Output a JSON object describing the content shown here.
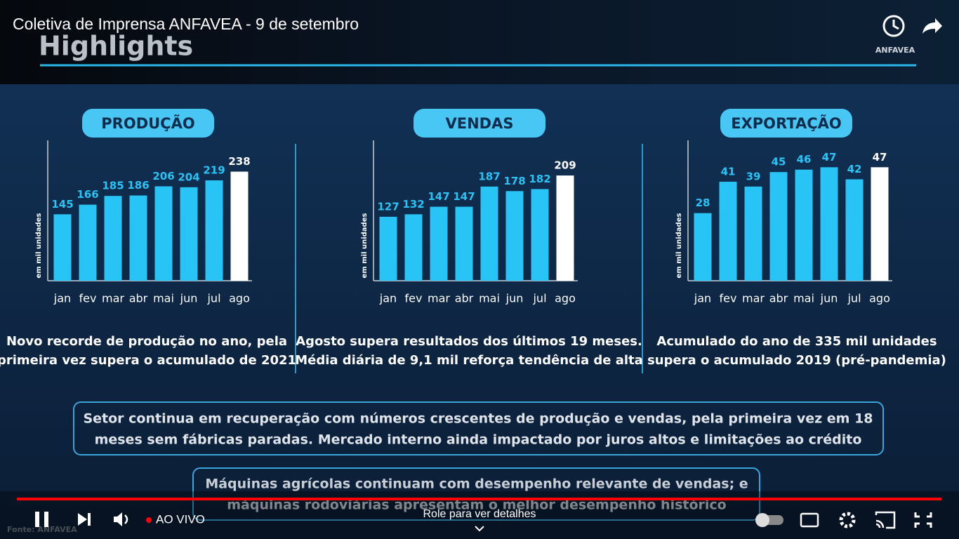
{
  "video": {
    "title": "Coletiva de Imprensa ANFAVEA - 9 de setembro",
    "logo": "ANFAVEA"
  },
  "slide": {
    "heading": "Highlights",
    "source": "Fonte: ANFAVEA"
  },
  "chart_data": [
    {
      "type": "bar",
      "title": "PRODUÇÃO",
      "y_label": "em mil unidades",
      "categories": [
        "jan",
        "fev",
        "mar",
        "abr",
        "mai",
        "jun",
        "jul",
        "ago"
      ],
      "values": [
        145,
        166,
        185,
        186,
        206,
        204,
        219,
        238
      ],
      "colors": [
        "#29c4f6",
        "#29c4f6",
        "#29c4f6",
        "#29c4f6",
        "#29c4f6",
        "#29c4f6",
        "#29c4f6",
        "#ffffff"
      ],
      "ylim": [
        0,
        245
      ],
      "caption": [
        "Novo recorde de produção no ano, pela",
        "primeira vez supera o acumulado de 2021"
      ]
    },
    {
      "type": "bar",
      "title": "VENDAS",
      "y_label": "em mil unidades",
      "categories": [
        "jan",
        "fev",
        "mar",
        "abr",
        "mai",
        "jun",
        "jul",
        "ago"
      ],
      "values": [
        127,
        132,
        147,
        147,
        187,
        178,
        182,
        209
      ],
      "colors": [
        "#29c4f6",
        "#29c4f6",
        "#29c4f6",
        "#29c4f6",
        "#29c4f6",
        "#29c4f6",
        "#29c4f6",
        "#ffffff"
      ],
      "ylim": [
        0,
        223
      ],
      "caption": [
        "Agosto supera resultados dos últimos 19 meses.",
        "Média diária de 9,1 mil reforça tendência de alta"
      ]
    },
    {
      "type": "bar",
      "title": "EXPORTAÇÃO",
      "y_label": "em mil unidades",
      "categories": [
        "jan",
        "fev",
        "mar",
        "abr",
        "mai",
        "jun",
        "jul",
        "ago"
      ],
      "values": [
        28,
        41,
        39,
        45,
        46,
        47,
        42,
        47
      ],
      "colors": [
        "#29c4f6",
        "#29c4f6",
        "#29c4f6",
        "#29c4f6",
        "#29c4f6",
        "#29c4f6",
        "#29c4f6",
        "#ffffff"
      ],
      "ylim": [
        0,
        46.5
      ],
      "caption": [
        "Acumulado do ano de 335 mil unidades",
        "supera o acumulado 2019 (pré-pandemia)"
      ]
    }
  ],
  "notes": [
    [
      "Setor continua em recuperação com números crescentes de produção e vendas, pela primeira vez em 18",
      "meses sem fábricas paradas. Mercado interno ainda impactado por juros altos e limitações ao crédito"
    ],
    [
      "Máquinas agrícolas continuam com desempenho relevante de vendas; e",
      "máquinas rodoviárias apresentam o melhor desempenho histórico"
    ]
  ],
  "controls": {
    "live": "AO VIVO",
    "scroll_hint": "Role para ver detalhes"
  }
}
